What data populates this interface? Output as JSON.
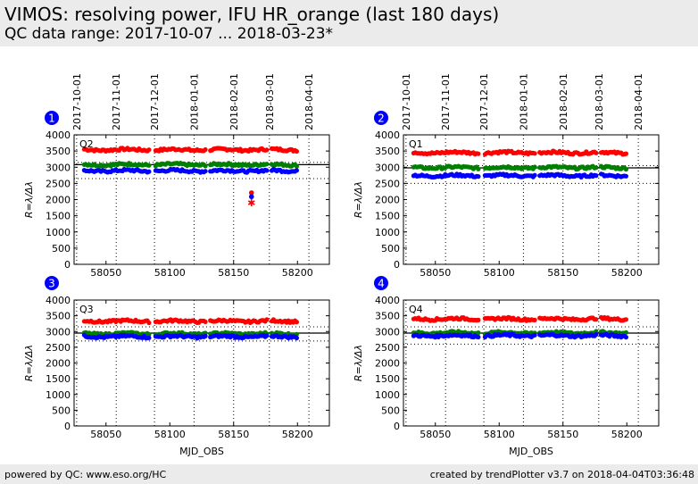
{
  "header": {
    "title": "VIMOS: resolving power, IFU HR_orange (last 180 days)",
    "subtitle": "QC data range: 2017-10-07 ... 2018-03-23*"
  },
  "footer": {
    "left": "powered by QC: www.eso.org/HC",
    "right": "created by trendPlotter v3.7 on 2018-04-04T03:36:48"
  },
  "colors": {
    "red": "#ff0000",
    "green": "#008000",
    "blue": "#0000ff",
    "badge": "#0000ff"
  },
  "chart_data": {
    "type": "scatter",
    "xlabel": "MJD_OBS",
    "ylabel": "R=λ/Δλ",
    "xlim": [
      58025,
      58225
    ],
    "ylim": [
      0,
      4000
    ],
    "xticks": [
      58050,
      58100,
      58150,
      58200
    ],
    "yticks": [
      0,
      500,
      1000,
      1500,
      2000,
      2500,
      3000,
      3500,
      4000
    ],
    "date_ticks": [
      {
        "label": "2017-10-01",
        "mjd": 58027
      },
      {
        "label": "2017-11-01",
        "mjd": 58058
      },
      {
        "label": "2017-12-01",
        "mjd": 58088
      },
      {
        "label": "2018-01-01",
        "mjd": 58119
      },
      {
        "label": "2018-02-01",
        "mjd": 58150
      },
      {
        "label": "2018-03-01",
        "mjd": 58178
      },
      {
        "label": "2018-04-01",
        "mjd": 58209
      }
    ],
    "x_range": [
      58033,
      58200
    ],
    "panels": [
      {
        "number": "1",
        "quadrant": "Q2",
        "reference": 3080,
        "dotted": [
          3150,
          2650
        ],
        "levels": {
          "red": 3540,
          "green": 3080,
          "blue": 2890
        },
        "outliers": [
          {
            "x": 58164,
            "y": 2210,
            "color": "red",
            "marker": "circle"
          },
          {
            "x": 58164,
            "y": 2090,
            "color": "blue",
            "marker": "circle"
          },
          {
            "x": 58164,
            "y": 1910,
            "color": "red",
            "marker": "star"
          }
        ]
      },
      {
        "number": "2",
        "quadrant": "Q1",
        "reference": 2980,
        "dotted": [
          3050,
          2500
        ],
        "levels": {
          "red": 3450,
          "green": 2990,
          "blue": 2740
        },
        "outliers": []
      },
      {
        "number": "3",
        "quadrant": "Q3",
        "reference": 2950,
        "dotted": [
          3150,
          2700
        ],
        "levels": {
          "red": 3330,
          "green": 2930,
          "blue": 2840
        },
        "outliers": []
      },
      {
        "number": "4",
        "quadrant": "Q4",
        "reference": 2950,
        "dotted": [
          3150,
          2600
        ],
        "levels": {
          "red": 3400,
          "green": 2960,
          "blue": 2870
        },
        "outliers": []
      }
    ]
  }
}
